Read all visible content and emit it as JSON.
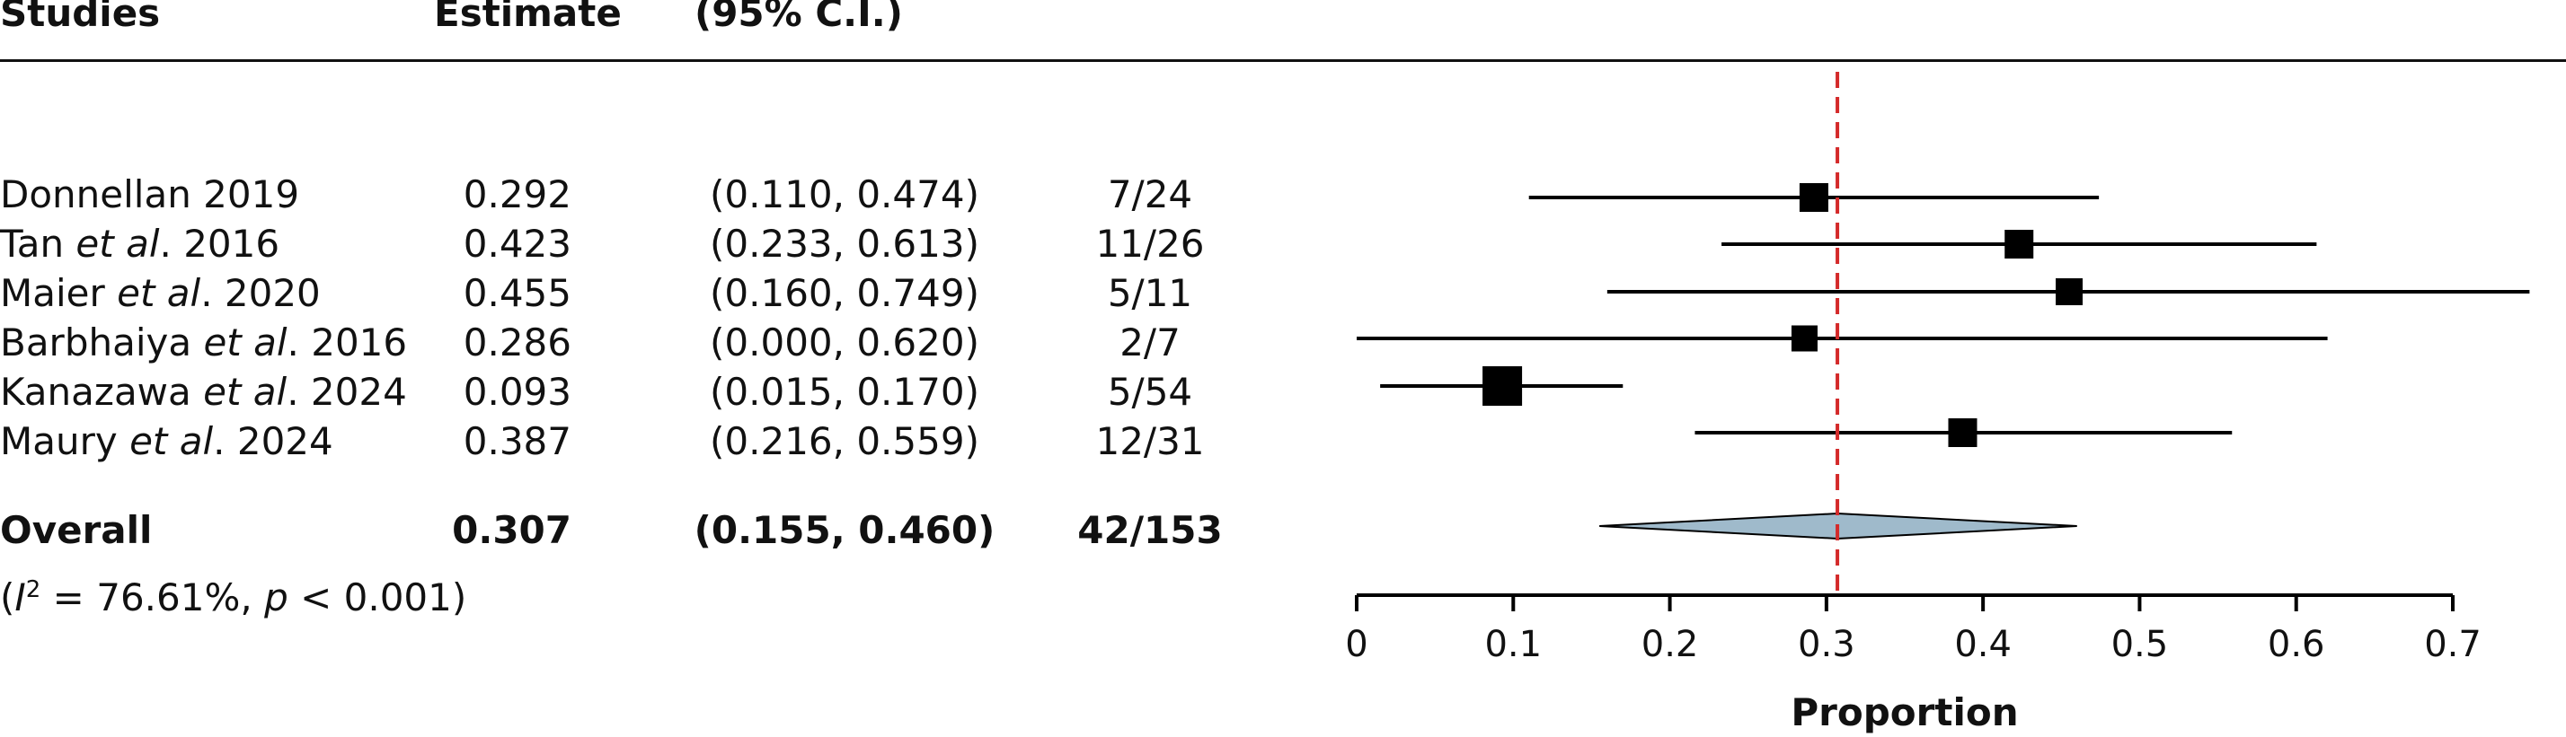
{
  "headers": {
    "studies": "Studies",
    "estimate": "Estimate",
    "ci": "(95% C.I.)"
  },
  "studies": [
    {
      "name_pre": "Donnellan 2019",
      "name_it": "",
      "name_post": "",
      "estimate": "0.292",
      "ci": "(0.110, 0.474)",
      "events": "7/24"
    },
    {
      "name_pre": "Tan ",
      "name_it": "et al",
      "name_post": ". 2016",
      "estimate": "0.423",
      "ci": "(0.233, 0.613)",
      "events": "11/26"
    },
    {
      "name_pre": "Maier ",
      "name_it": "et al",
      "name_post": ". 2020",
      "estimate": "0.455",
      "ci": "(0.160, 0.749)",
      "events": "5/11"
    },
    {
      "name_pre": "Barbhaiya ",
      "name_it": "et al",
      "name_post": ". 2016",
      "estimate": "0.286",
      "ci": "(0.000, 0.620)",
      "events": "2/7"
    },
    {
      "name_pre": "Kanazawa ",
      "name_it": "et al",
      "name_post": ". 2024",
      "estimate": "0.093",
      "ci": "(0.015, 0.170)",
      "events": "5/54"
    },
    {
      "name_pre": "Maury ",
      "name_it": "et al",
      "name_post": ". 2024",
      "estimate": "0.387",
      "ci": "(0.216, 0.559)",
      "events": "12/31"
    }
  ],
  "overall": {
    "label": "Overall",
    "estimate": "0.307",
    "ci": "(0.155, 0.460)",
    "events": "42/153"
  },
  "heterogeneity": {
    "open": "(",
    "i": "I",
    "sup": "2",
    "mid": " = 76.61%, ",
    "p": "p",
    "end": " < 0.001)"
  },
  "chart_data": {
    "type": "forest",
    "xlabel": "Proportion",
    "xlim": [
      0,
      0.7
    ],
    "xticks": [
      0,
      0.1,
      0.2,
      0.3,
      0.4,
      0.5,
      0.6,
      0.7
    ],
    "xtick_labels": [
      "0",
      "0.1",
      "0.2",
      "0.3",
      "0.4",
      "0.5",
      "0.6",
      "0.7"
    ],
    "reference_line": 0.307,
    "reference_color": "#d42a2a",
    "diamond_color": "#9fbacb",
    "studies": [
      {
        "name": "Donnellan 2019",
        "estimate": 0.292,
        "lower": 0.11,
        "upper": 0.474,
        "weight": 0.4
      },
      {
        "name": "Tan et al. 2016",
        "estimate": 0.423,
        "lower": 0.233,
        "upper": 0.613,
        "weight": 0.4
      },
      {
        "name": "Maier et al. 2020",
        "estimate": 0.455,
        "lower": 0.16,
        "upper": 0.749,
        "weight": 0.3
      },
      {
        "name": "Barbhaiya et al. 2016",
        "estimate": 0.286,
        "lower": 0.0,
        "upper": 0.62,
        "weight": 0.25
      },
      {
        "name": "Kanazawa et al. 2024",
        "estimate": 0.093,
        "lower": 0.015,
        "upper": 0.17,
        "weight": 1.0
      },
      {
        "name": "Maury et al. 2024",
        "estimate": 0.387,
        "lower": 0.216,
        "upper": 0.559,
        "weight": 0.4
      }
    ],
    "overall": {
      "estimate": 0.307,
      "lower": 0.155,
      "upper": 0.46
    }
  }
}
